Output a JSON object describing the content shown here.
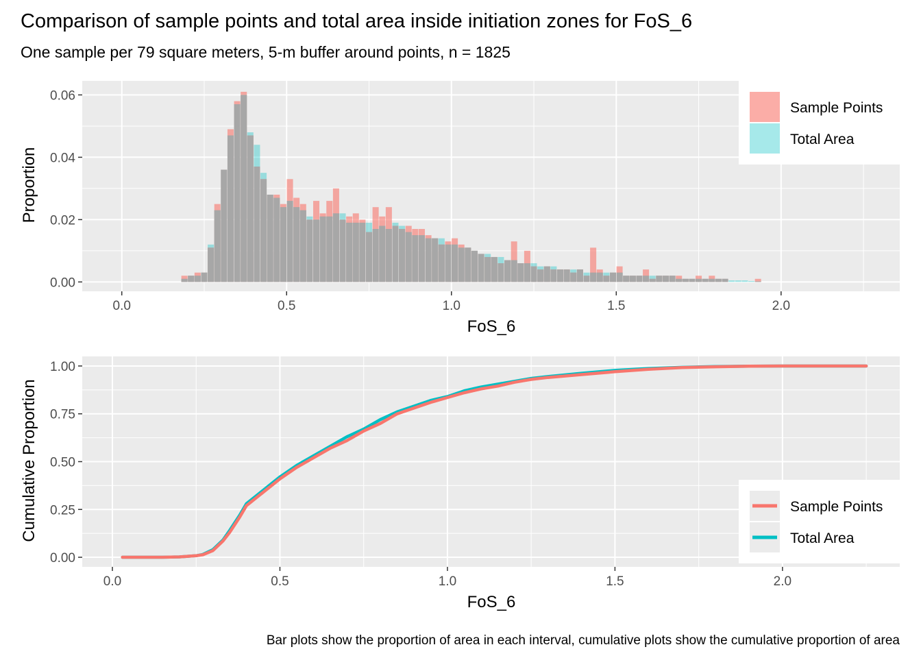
{
  "title": "Comparison of sample points and total area inside initiation zones for FoS_6",
  "subtitle": "One sample per 79 square meters, 5-m buffer around points, n = 1825",
  "caption": "Bar plots show the proportion of area in each interval, cumulative plots show the cumulative proportion of area",
  "colors": {
    "sample": "#F8766D",
    "total": "#00BFC4",
    "panel": "#EBEBEB",
    "overlap": "#A7A7A7"
  },
  "chart_data": [
    {
      "type": "bar",
      "xlabel": "FoS_6",
      "ylabel": "Proportion",
      "xlim": [
        -0.12,
        2.36
      ],
      "ylim": [
        -0.003,
        0.0645
      ],
      "xticks": [
        {
          "v": 0.0,
          "label": "0.0"
        },
        {
          "v": 0.5,
          "label": "0.5"
        },
        {
          "v": 1.0,
          "label": "1.0"
        },
        {
          "v": 1.5,
          "label": "1.5"
        },
        {
          "v": 2.0,
          "label": "2.0"
        }
      ],
      "yticks": [
        {
          "v": 0.0,
          "label": "0.00"
        },
        {
          "v": 0.02,
          "label": "0.02"
        },
        {
          "v": 0.04,
          "label": "0.04"
        },
        {
          "v": 0.06,
          "label": "0.06"
        }
      ],
      "bin_width": 0.02,
      "x": [
        0.19,
        0.21,
        0.23,
        0.25,
        0.27,
        0.29,
        0.31,
        0.33,
        0.35,
        0.37,
        0.39,
        0.41,
        0.43,
        0.45,
        0.47,
        0.49,
        0.51,
        0.53,
        0.55,
        0.57,
        0.59,
        0.61,
        0.63,
        0.65,
        0.67,
        0.69,
        0.71,
        0.73,
        0.75,
        0.77,
        0.79,
        0.81,
        0.83,
        0.85,
        0.87,
        0.89,
        0.91,
        0.93,
        0.95,
        0.97,
        0.99,
        1.01,
        1.03,
        1.05,
        1.07,
        1.09,
        1.11,
        1.13,
        1.15,
        1.17,
        1.19,
        1.21,
        1.23,
        1.25,
        1.27,
        1.29,
        1.31,
        1.33,
        1.35,
        1.37,
        1.39,
        1.41,
        1.43,
        1.45,
        1.47,
        1.49,
        1.51,
        1.53,
        1.55,
        1.57,
        1.59,
        1.61,
        1.63,
        1.65,
        1.67,
        1.69,
        1.71,
        1.73,
        1.75,
        1.77,
        1.79,
        1.81,
        1.83,
        1.85,
        1.87,
        1.89,
        1.91,
        1.93
      ],
      "series": [
        {
          "name": "Sample Points",
          "values": [
            0.002,
            0.002,
            0.003,
            0.003,
            0.011,
            0.025,
            0.036,
            0.049,
            0.058,
            0.061,
            0.047,
            0.037,
            0.033,
            0.028,
            0.028,
            0.025,
            0.033,
            0.027,
            0.025,
            0.02,
            0.026,
            0.022,
            0.026,
            0.03,
            0.02,
            0.021,
            0.022,
            0.02,
            0.016,
            0.024,
            0.021,
            0.024,
            0.018,
            0.017,
            0.018,
            0.017,
            0.017,
            0.015,
            0.014,
            0.012,
            0.013,
            0.014,
            0.012,
            0.011,
            0.01,
            0.009,
            0.008,
            0.008,
            0.006,
            0.007,
            0.013,
            0.006,
            0.01,
            0.005,
            0.004,
            0.005,
            0.004,
            0.004,
            0.004,
            0.003,
            0.004,
            0.002,
            0.011,
            0.004,
            0.002,
            0.003,
            0.005,
            0.002,
            0.002,
            0.002,
            0.004,
            0.001,
            0.002,
            0.002,
            0.002,
            0.002,
            0.001,
            0.001,
            0.002,
            0.001,
            0.002,
            0.001,
            0.001,
            0.0,
            0.0,
            0.0,
            0.0,
            0.001
          ]
        },
        {
          "name": "Total Area",
          "values": [
            0.001,
            0.002,
            0.002,
            0.003,
            0.012,
            0.023,
            0.036,
            0.047,
            0.057,
            0.06,
            0.048,
            0.044,
            0.035,
            0.028,
            0.027,
            0.024,
            0.026,
            0.024,
            0.023,
            0.021,
            0.02,
            0.021,
            0.021,
            0.022,
            0.022,
            0.019,
            0.019,
            0.019,
            0.019,
            0.017,
            0.018,
            0.017,
            0.019,
            0.018,
            0.016,
            0.015,
            0.015,
            0.014,
            0.014,
            0.014,
            0.012,
            0.012,
            0.011,
            0.011,
            0.01,
            0.009,
            0.009,
            0.008,
            0.008,
            0.007,
            0.007,
            0.006,
            0.006,
            0.006,
            0.005,
            0.005,
            0.005,
            0.004,
            0.004,
            0.004,
            0.004,
            0.003,
            0.003,
            0.003,
            0.003,
            0.003,
            0.003,
            0.002,
            0.002,
            0.002,
            0.002,
            0.002,
            0.002,
            0.002,
            0.002,
            0.001,
            0.001,
            0.001,
            0.001,
            0.001,
            0.001,
            0.001,
            0.001,
            0.0005,
            0.0005,
            0.0005,
            0.0003,
            0.0002
          ]
        }
      ],
      "legend": {
        "position": "top-right",
        "items": [
          "Sample Points",
          "Total Area"
        ]
      }
    },
    {
      "type": "line",
      "xlabel": "FoS_6",
      "ylabel": "Cumulative Proportion",
      "xlim": [
        -0.09,
        2.35
      ],
      "ylim": [
        -0.05,
        1.05
      ],
      "xticks": [
        {
          "v": 0.0,
          "label": "0.0"
        },
        {
          "v": 0.5,
          "label": "0.5"
        },
        {
          "v": 1.0,
          "label": "1.0"
        },
        {
          "v": 1.5,
          "label": "1.5"
        },
        {
          "v": 2.0,
          "label": "2.0"
        }
      ],
      "yticks": [
        {
          "v": 0.0,
          "label": "0.00"
        },
        {
          "v": 0.25,
          "label": "0.25"
        },
        {
          "v": 0.5,
          "label": "0.50"
        },
        {
          "v": 0.75,
          "label": "0.75"
        },
        {
          "v": 1.0,
          "label": "1.00"
        }
      ],
      "series": [
        {
          "name": "Total Area",
          "points": [
            [
              0.03,
              0.0
            ],
            [
              0.15,
              0.0
            ],
            [
              0.2,
              0.002
            ],
            [
              0.25,
              0.008
            ],
            [
              0.27,
              0.015
            ],
            [
              0.3,
              0.04
            ],
            [
              0.33,
              0.09
            ],
            [
              0.35,
              0.14
            ],
            [
              0.38,
              0.22
            ],
            [
              0.4,
              0.28
            ],
            [
              0.45,
              0.35
            ],
            [
              0.5,
              0.42
            ],
            [
              0.55,
              0.48
            ],
            [
              0.6,
              0.53
            ],
            [
              0.65,
              0.58
            ],
            [
              0.7,
              0.63
            ],
            [
              0.75,
              0.67
            ],
            [
              0.8,
              0.72
            ],
            [
              0.85,
              0.76
            ],
            [
              0.9,
              0.79
            ],
            [
              0.95,
              0.82
            ],
            [
              1.0,
              0.84
            ],
            [
              1.05,
              0.87
            ],
            [
              1.1,
              0.89
            ],
            [
              1.15,
              0.905
            ],
            [
              1.2,
              0.92
            ],
            [
              1.25,
              0.935
            ],
            [
              1.3,
              0.945
            ],
            [
              1.4,
              0.962
            ],
            [
              1.5,
              0.977
            ],
            [
              1.6,
              0.987
            ],
            [
              1.7,
              0.993
            ],
            [
              1.8,
              0.997
            ],
            [
              1.9,
              0.999
            ],
            [
              2.0,
              1.0
            ],
            [
              2.25,
              1.0
            ]
          ]
        },
        {
          "name": "Sample Points",
          "points": [
            [
              0.03,
              0.0
            ],
            [
              0.15,
              0.0
            ],
            [
              0.2,
              0.002
            ],
            [
              0.25,
              0.008
            ],
            [
              0.27,
              0.013
            ],
            [
              0.3,
              0.035
            ],
            [
              0.33,
              0.085
            ],
            [
              0.35,
              0.13
            ],
            [
              0.38,
              0.21
            ],
            [
              0.4,
              0.27
            ],
            [
              0.45,
              0.34
            ],
            [
              0.5,
              0.41
            ],
            [
              0.55,
              0.47
            ],
            [
              0.6,
              0.52
            ],
            [
              0.65,
              0.57
            ],
            [
              0.7,
              0.61
            ],
            [
              0.75,
              0.66
            ],
            [
              0.8,
              0.7
            ],
            [
              0.85,
              0.75
            ],
            [
              0.9,
              0.78
            ],
            [
              0.95,
              0.81
            ],
            [
              1.0,
              0.835
            ],
            [
              1.05,
              0.86
            ],
            [
              1.1,
              0.88
            ],
            [
              1.15,
              0.895
            ],
            [
              1.2,
              0.915
            ],
            [
              1.25,
              0.93
            ],
            [
              1.3,
              0.94
            ],
            [
              1.4,
              0.955
            ],
            [
              1.5,
              0.97
            ],
            [
              1.6,
              0.983
            ],
            [
              1.7,
              0.992
            ],
            [
              1.8,
              0.996
            ],
            [
              1.9,
              0.999
            ],
            [
              2.0,
              1.0
            ],
            [
              2.25,
              1.0
            ]
          ]
        }
      ],
      "legend": {
        "position": "bottom-right",
        "items": [
          "Sample Points",
          "Total Area"
        ]
      }
    }
  ]
}
